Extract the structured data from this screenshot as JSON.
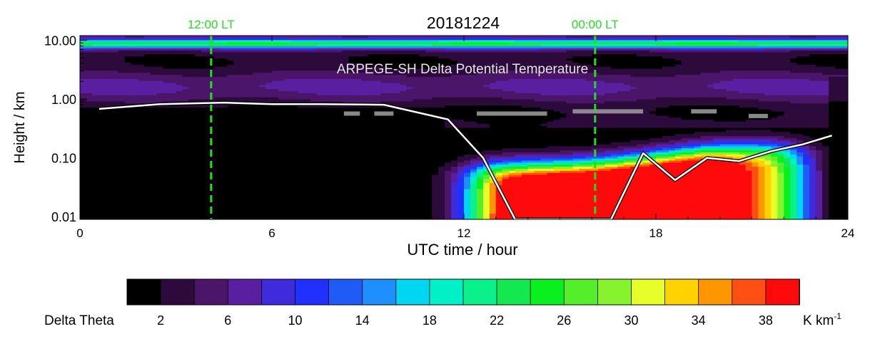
{
  "chart_data": {
    "type": "heatmap",
    "title": "20181224",
    "subtitle": "ARPEGE-SH Delta Potential Temperature",
    "xlabel": "UTC time / hour",
    "ylabel": "Height / km",
    "xlim": [
      0,
      24
    ],
    "ylim": [
      0.009,
      12
    ],
    "yscale": "log",
    "x_ticks": [
      "0",
      "6",
      "12",
      "18",
      "24"
    ],
    "x_tick_values": [
      0,
      6,
      12,
      18,
      24
    ],
    "y_ticks": [
      "0.01",
      "0.10",
      "1.00",
      "10.00"
    ],
    "y_tick_values": [
      0.01,
      0.1,
      1,
      10
    ],
    "local_time_markers": [
      {
        "label": "12:00 LT",
        "x": 4.1,
        "color": "#22dd22"
      },
      {
        "label": "00:00 LT",
        "x": 16.1,
        "color": "#22dd22"
      }
    ],
    "boundary_layer_height": {
      "color": "#ffffff",
      "x": [
        0.6,
        2.5,
        4.5,
        6.0,
        7.5,
        9.5,
        11.5,
        12.6,
        13.6,
        16.6,
        17.6,
        18.6,
        19.6,
        20.6,
        21.6,
        22.6,
        23.5
      ],
      "y": [
        0.68,
        0.82,
        0.87,
        0.82,
        0.82,
        0.8,
        0.45,
        0.1,
        0.009,
        0.009,
        0.12,
        0.042,
        0.1,
        0.088,
        0.13,
        0.17,
        0.24
      ]
    },
    "colorbar": {
      "label": "Delta Theta",
      "unit": "K km",
      "unit_exponent": "-1",
      "tick_labels": [
        "2",
        "6",
        "10",
        "14",
        "18",
        "22",
        "26",
        "30",
        "34",
        "38"
      ],
      "levels": [
        0,
        2,
        4,
        6,
        8,
        10,
        12,
        14,
        16,
        18,
        20,
        22,
        24,
        26,
        28,
        30,
        32,
        34,
        36,
        38,
        40
      ],
      "colors": [
        "#000000",
        "#2d0a3c",
        "#4b1569",
        "#5a1fa0",
        "#3d2bdc",
        "#1f30ff",
        "#1f5cf7",
        "#1d8fff",
        "#00d5f2",
        "#00f0c8",
        "#0af08a",
        "#14e850",
        "#0af01e",
        "#55ee2a",
        "#87f22e",
        "#e6ff28",
        "#ffd200",
        "#ff9600",
        "#ff5014",
        "#ff0a0a"
      ]
    }
  }
}
